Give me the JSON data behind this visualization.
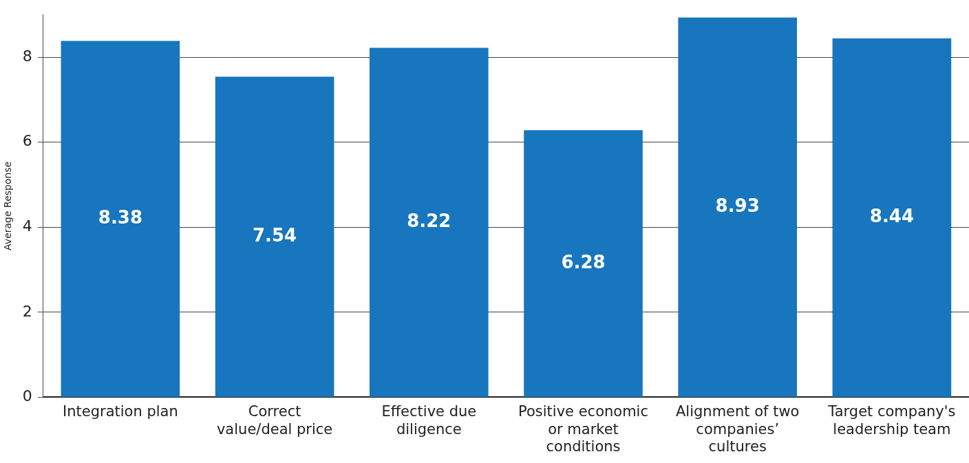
{
  "chart_data": {
    "type": "bar",
    "ylabel": "Average Response",
    "categories": [
      "Integration plan",
      "Correct value/deal price",
      "Effective due diligence",
      "Positive economic or market conditions",
      "Alignment of two companies’ cultures",
      "Target company's leadership team"
    ],
    "values": [
      8.38,
      7.54,
      8.22,
      6.28,
      8.93,
      8.44
    ],
    "color": "#1776bd",
    "ylim": [
      0,
      9
    ],
    "yticks": [
      0,
      2,
      4,
      6,
      8
    ],
    "grid": "y",
    "data_labels": true,
    "legend": false
  }
}
